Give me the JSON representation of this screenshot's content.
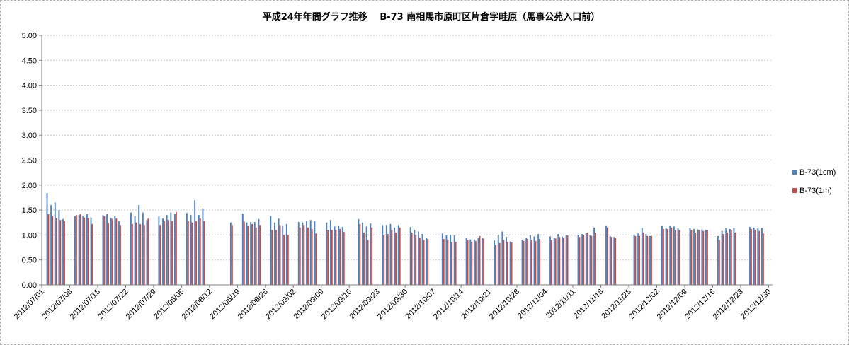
{
  "chart_data": {
    "type": "bar",
    "title": "平成24年年間グラフ推移　 B-73 南相馬市原町区片倉字畦原（馬事公苑入口前）",
    "xlabel": "",
    "ylabel": "",
    "ylim": [
      0,
      5
    ],
    "yticks": [
      "5.00",
      "4.50",
      "4.00",
      "3.50",
      "3.00",
      "2.50",
      "2.00",
      "1.50",
      "1.00",
      "0.50",
      "0.00"
    ],
    "x_range": [
      "2012/07/01",
      "2012/12/30"
    ],
    "xticks": [
      "2012/07/01",
      "2012/07/08",
      "2012/07/15",
      "2012/07/22",
      "2012/07/29",
      "2012/08/05",
      "2012/08/12",
      "2012/08/19",
      "2012/08/26",
      "2012/09/02",
      "2012/09/09",
      "2012/09/16",
      "2012/09/23",
      "2012/09/30",
      "2012/10/07",
      "2012/10/14",
      "2012/10/21",
      "2012/10/28",
      "2012/11/04",
      "2012/11/11",
      "2012/11/18",
      "2012/11/25",
      "2012/12/02",
      "2012/12/09",
      "2012/12/16",
      "2012/12/23",
      "2012/12/30"
    ],
    "grid": true,
    "legend_position": "right",
    "x": [
      "2012/07/02",
      "2012/07/03",
      "2012/07/04",
      "2012/07/05",
      "2012/07/06",
      "2012/07/09",
      "2012/07/10",
      "2012/07/11",
      "2012/07/12",
      "2012/07/13",
      "2012/07/16",
      "2012/07/17",
      "2012/07/18",
      "2012/07/19",
      "2012/07/20",
      "2012/07/23",
      "2012/07/24",
      "2012/07/25",
      "2012/07/26",
      "2012/07/27",
      "2012/07/30",
      "2012/07/31",
      "2012/08/01",
      "2012/08/02",
      "2012/08/03",
      "2012/08/06",
      "2012/08/07",
      "2012/08/08",
      "2012/08/09",
      "2012/08/10",
      "2012/08/17",
      "2012/08/20",
      "2012/08/21",
      "2012/08/22",
      "2012/08/23",
      "2012/08/24",
      "2012/08/27",
      "2012/08/28",
      "2012/08/29",
      "2012/08/30",
      "2012/08/31",
      "2012/09/03",
      "2012/09/04",
      "2012/09/05",
      "2012/09/06",
      "2012/09/07",
      "2012/09/10",
      "2012/09/11",
      "2012/09/12",
      "2012/09/13",
      "2012/09/14",
      "2012/09/18",
      "2012/09/19",
      "2012/09/20",
      "2012/09/21",
      "2012/09/24",
      "2012/09/25",
      "2012/09/26",
      "2012/09/27",
      "2012/09/28",
      "2012/10/01",
      "2012/10/02",
      "2012/10/03",
      "2012/10/04",
      "2012/10/05",
      "2012/10/09",
      "2012/10/10",
      "2012/10/11",
      "2012/10/12",
      "2012/10/15",
      "2012/10/16",
      "2012/10/17",
      "2012/10/18",
      "2012/10/19",
      "2012/10/22",
      "2012/10/23",
      "2012/10/24",
      "2012/10/25",
      "2012/10/26",
      "2012/10/29",
      "2012/10/30",
      "2012/10/31",
      "2012/11/01",
      "2012/11/02",
      "2012/11/05",
      "2012/11/06",
      "2012/11/07",
      "2012/11/08",
      "2012/11/09",
      "2012/11/12",
      "2012/11/13",
      "2012/11/14",
      "2012/11/15",
      "2012/11/16",
      "2012/11/19",
      "2012/11/20",
      "2012/11/21",
      "2012/11/26",
      "2012/11/27",
      "2012/11/28",
      "2012/11/29",
      "2012/11/30",
      "2012/12/03",
      "2012/12/04",
      "2012/12/05",
      "2012/12/06",
      "2012/12/07",
      "2012/12/10",
      "2012/12/11",
      "2012/12/12",
      "2012/12/13",
      "2012/12/14",
      "2012/12/17",
      "2012/12/18",
      "2012/12/19",
      "2012/12/20",
      "2012/12/21",
      "2012/12/25",
      "2012/12/26",
      "2012/12/27",
      "2012/12/28"
    ],
    "series": [
      {
        "name": "B-73(1cm)",
        "color": "#4f81bd",
        "values": [
          1.84,
          1.6,
          1.65,
          1.5,
          1.32,
          1.38,
          1.4,
          1.38,
          1.42,
          1.35,
          1.4,
          1.42,
          1.34,
          1.38,
          1.28,
          1.45,
          1.38,
          1.6,
          1.45,
          1.3,
          1.37,
          1.33,
          1.4,
          1.45,
          1.42,
          1.44,
          1.4,
          1.7,
          1.4,
          1.53,
          1.25,
          1.43,
          1.25,
          1.26,
          1.26,
          1.32,
          1.38,
          1.25,
          1.33,
          1.18,
          1.22,
          1.26,
          1.25,
          1.28,
          1.3,
          1.28,
          1.25,
          1.3,
          1.17,
          1.18,
          1.16,
          1.32,
          1.25,
          1.17,
          1.23,
          1.2,
          1.2,
          1.22,
          1.15,
          1.2,
          1.16,
          1.1,
          1.07,
          1.02,
          0.95,
          1.03,
          1.0,
          1.0,
          1.0,
          0.94,
          0.91,
          0.91,
          0.94,
          0.94,
          0.89,
          1.0,
          1.07,
          0.96,
          0.87,
          0.9,
          0.94,
          1.0,
          0.97,
          1.02,
          0.97,
          0.94,
          1.02,
          0.97,
          1.0,
          1.0,
          1.02,
          1.04,
          1.0,
          1.15,
          1.18,
          0.98,
          0.96,
          1.01,
          1.03,
          1.14,
          1.02,
          0.98,
          1.18,
          1.14,
          1.18,
          1.17,
          1.13,
          1.14,
          1.12,
          1.11,
          1.11,
          1.1,
          0.98,
          1.08,
          1.13,
          1.12,
          1.14,
          1.16,
          1.15,
          1.13,
          1.14
        ]
      },
      {
        "name": "B-73(1m)",
        "color": "#c0504d",
        "values": [
          1.42,
          1.38,
          1.34,
          1.3,
          1.28,
          1.4,
          1.42,
          1.35,
          1.34,
          1.22,
          1.38,
          1.24,
          1.32,
          1.33,
          1.2,
          1.22,
          1.25,
          1.22,
          1.2,
          1.33,
          1.2,
          1.28,
          1.3,
          1.28,
          1.46,
          1.28,
          1.25,
          1.28,
          1.33,
          1.28,
          1.2,
          1.27,
          1.18,
          1.22,
          1.15,
          1.2,
          1.1,
          1.1,
          1.2,
          1.0,
          1.0,
          1.15,
          1.2,
          1.15,
          1.12,
          1.03,
          1.1,
          1.1,
          1.1,
          1.12,
          1.06,
          1.22,
          1.05,
          0.9,
          1.15,
          1.0,
          1.02,
          1.1,
          1.05,
          1.15,
          1.05,
          1.0,
          0.95,
          0.9,
          0.92,
          0.92,
          0.9,
          0.86,
          0.86,
          0.9,
          0.86,
          0.88,
          0.98,
          0.93,
          0.8,
          0.84,
          0.9,
          0.86,
          0.85,
          0.88,
          0.92,
          0.9,
          0.88,
          0.92,
          0.9,
          0.93,
          0.96,
          0.94,
          0.99,
          0.96,
          1.0,
          1.05,
          0.98,
          1.05,
          1.15,
          0.96,
          0.94,
          0.98,
          0.98,
          1.05,
          0.98,
          0.98,
          1.12,
          1.12,
          1.15,
          1.1,
          1.1,
          1.1,
          1.05,
          1.1,
          1.08,
          1.1,
          0.9,
          1.02,
          1.05,
          1.1,
          1.05,
          1.12,
          1.1,
          1.08,
          1.03
        ]
      }
    ]
  }
}
